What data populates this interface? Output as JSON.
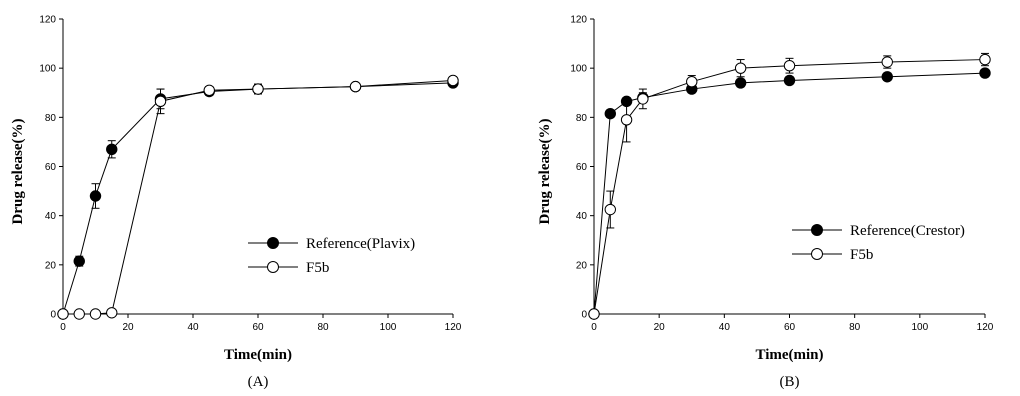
{
  "chart_data": [
    {
      "type": "line",
      "panel_label": "(A)",
      "xlabel": "Time(min)",
      "ylabel": "Drug release(%)",
      "xlim": [
        0,
        120
      ],
      "ylim": [
        0,
        120
      ],
      "xticks": [
        0,
        20,
        40,
        60,
        80,
        100,
        120
      ],
      "yticks": [
        0,
        20,
        40,
        60,
        80,
        100,
        120
      ],
      "legend_position": "right-middle",
      "series": [
        {
          "name": "Reference(Plavix)",
          "marker": "filled-circle",
          "x": [
            0,
            5,
            10,
            15,
            30,
            45,
            60,
            90,
            120
          ],
          "y": [
            0,
            21.5,
            48,
            67,
            87.5,
            90.5,
            91.5,
            92.5,
            94
          ],
          "err": [
            0,
            2,
            5,
            3.5,
            4,
            1.5,
            2,
            1,
            1
          ]
        },
        {
          "name": "F5b",
          "marker": "open-circle",
          "x": [
            0,
            5,
            10,
            15,
            30,
            45,
            60,
            90,
            120
          ],
          "y": [
            0,
            0,
            0,
            0.5,
            86.5,
            91,
            91.5,
            92.5,
            95
          ],
          "err": [
            0,
            0,
            0,
            0,
            5,
            1.5,
            2,
            1,
            1.5
          ]
        }
      ]
    },
    {
      "type": "line",
      "panel_label": "(B)",
      "xlabel": "Time(min)",
      "ylabel": "Drug release(%)",
      "xlim": [
        0,
        120
      ],
      "ylim": [
        0,
        120
      ],
      "xticks": [
        0,
        20,
        40,
        60,
        80,
        100,
        120
      ],
      "yticks": [
        0,
        20,
        40,
        60,
        80,
        100,
        120
      ],
      "legend_position": "right-middle",
      "series": [
        {
          "name": "Reference(Crestor)",
          "marker": "filled-circle",
          "x": [
            0,
            5,
            10,
            15,
            30,
            45,
            60,
            90,
            120
          ],
          "y": [
            0,
            81.5,
            86.5,
            88,
            91.5,
            94,
            95,
            96.5,
            98
          ],
          "err": [
            0,
            1.5,
            1.5,
            2,
            1.5,
            1.5,
            1.5,
            1.5,
            1.5
          ]
        },
        {
          "name": "F5b",
          "marker": "open-circle",
          "x": [
            0,
            5,
            10,
            15,
            30,
            45,
            60,
            90,
            120
          ],
          "y": [
            0,
            42.5,
            79,
            87.5,
            94.5,
            100,
            101,
            102.5,
            103.5
          ],
          "err": [
            0,
            7.5,
            9,
            4,
            2.5,
            3.5,
            3,
            2.5,
            2.5
          ]
        }
      ]
    }
  ]
}
